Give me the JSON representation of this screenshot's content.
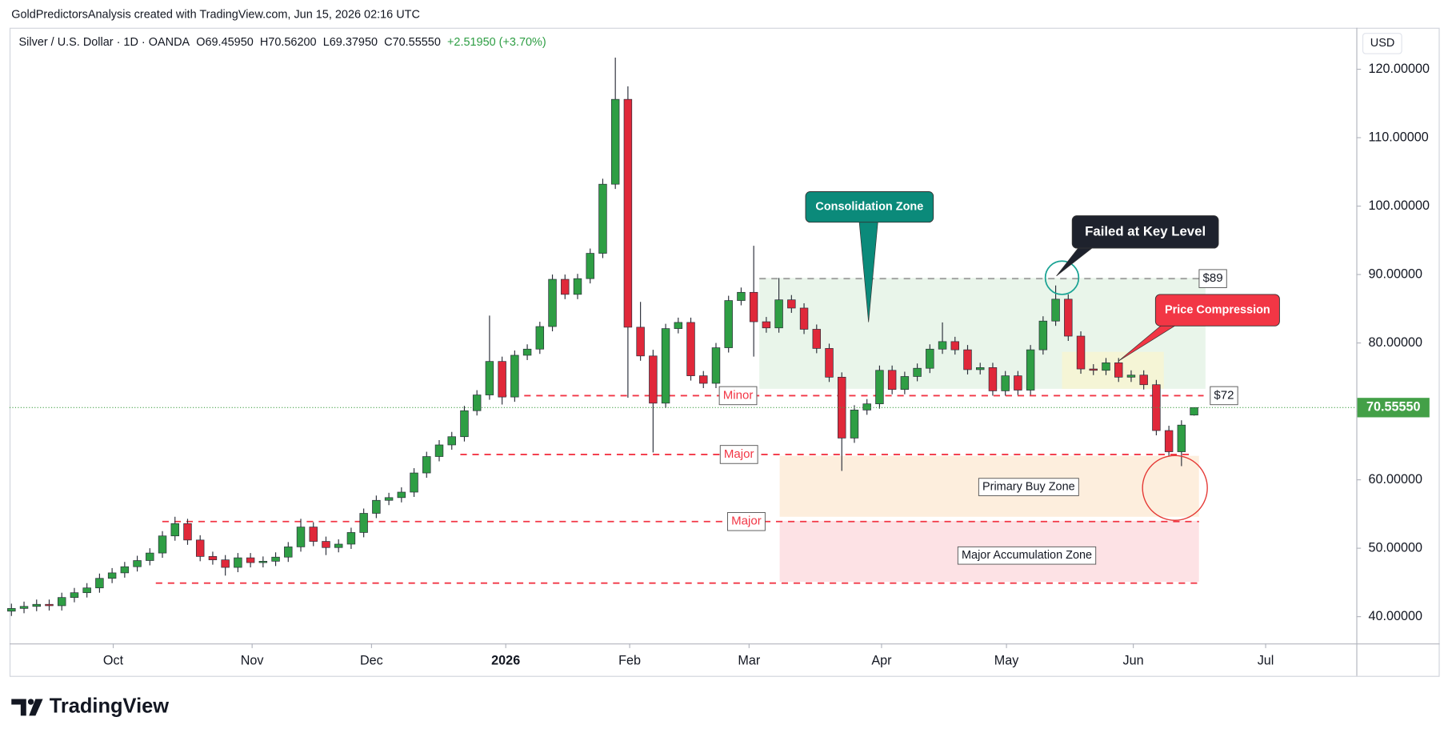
{
  "header": {
    "attribution": "GoldPredictorsAnalysis created with TradingView.com, Jun 15, 2026 02:16 UTC"
  },
  "chart_data": {
    "type": "candlestick",
    "title": "Silver / U.S. Dollar · 1D · OANDA",
    "legend_values": [
      "O69.45950",
      "H70.56200",
      "L69.37950",
      "C70.55550",
      "+2.51950 (+3.70%)"
    ],
    "currency": "USD",
    "up_color": "#2e9e44",
    "down_color": "#e0283a",
    "open": [
      40.8,
      41.2,
      41.5,
      41.8,
      41.6,
      42.8,
      43.5,
      44.2,
      45.6,
      46.4,
      47.3,
      48.2,
      49.3,
      51.8,
      53.6,
      51.2,
      48.8,
      48.3,
      47.2,
      48.6,
      47.9,
      48.1,
      48.7,
      50.2,
      53.1,
      51.0,
      50.1,
      50.6,
      52.3,
      55.1,
      57.0,
      57.4,
      58.2,
      61.0,
      63.4,
      65.1,
      66.3,
      70.1,
      72.4,
      77.3,
      72.1,
      78.2,
      79.1,
      82.4,
      89.3,
      87.1,
      89.4,
      93.1,
      103.2,
      115.6,
      82.3,
      78.1,
      71.2,
      82.1,
      83.0,
      75.2,
      74.1,
      79.3,
      86.2,
      87.4,
      83.1,
      82.2,
      86.3,
      85.1,
      82.0,
      79.2,
      75.0,
      66.1,
      70.2,
      71.1,
      76.0,
      73.2,
      75.1,
      76.3,
      79.1,
      80.2,
      79.0,
      76.1,
      76.4,
      73.0,
      75.2,
      73.1,
      79.0,
      83.2,
      86.4,
      81.0,
      76.2,
      76.0,
      77.1,
      75.0,
      75.3,
      73.9,
      67.2,
      64.1,
      69.4595
    ],
    "high": [
      41.9,
      42.2,
      42.5,
      42.5,
      43.5,
      44.2,
      44.9,
      46.3,
      47.1,
      48.0,
      48.9,
      50.0,
      52.5,
      54.6,
      54.3,
      51.9,
      49.5,
      49.0,
      49.3,
      49.3,
      48.8,
      49.4,
      50.9,
      54.3,
      53.8,
      51.7,
      51.3,
      53.0,
      55.8,
      57.7,
      58.1,
      58.9,
      61.7,
      64.1,
      65.8,
      67.0,
      70.8,
      73.1,
      84.0,
      78.0,
      78.9,
      79.8,
      83.1,
      90.0,
      90.0,
      90.1,
      93.8,
      104.0,
      121.7,
      117.5,
      86.0,
      79.0,
      82.8,
      83.7,
      83.7,
      75.9,
      80.0,
      86.9,
      88.1,
      94.2,
      83.8,
      89.5,
      87.0,
      85.8,
      82.7,
      79.9,
      75.7,
      70.9,
      71.8,
      76.7,
      76.7,
      75.8,
      77.0,
      79.8,
      83.0,
      80.9,
      79.7,
      77.1,
      77.1,
      75.9,
      75.9,
      79.7,
      83.9,
      88.4,
      87.1,
      81.7,
      76.9,
      77.8,
      77.8,
      76.0,
      76.0,
      74.6,
      67.9,
      68.7,
      70.562
    ],
    "low": [
      40.1,
      40.5,
      40.8,
      40.9,
      40.9,
      42.1,
      42.8,
      43.5,
      44.9,
      45.7,
      46.6,
      47.5,
      48.6,
      51.1,
      50.5,
      48.1,
      47.6,
      46.0,
      46.5,
      47.2,
      47.2,
      47.4,
      48.0,
      49.5,
      50.3,
      49.0,
      49.4,
      49.9,
      51.6,
      54.4,
      56.3,
      56.7,
      57.5,
      60.3,
      62.7,
      64.4,
      65.6,
      69.4,
      71.7,
      71.0,
      71.4,
      77.5,
      78.4,
      81.7,
      86.4,
      86.4,
      88.7,
      92.4,
      102.5,
      72.0,
      77.4,
      64.0,
      70.5,
      81.4,
      74.5,
      73.4,
      73.4,
      78.6,
      85.5,
      78.0,
      81.5,
      81.5,
      84.4,
      81.3,
      78.5,
      74.3,
      61.3,
      65.4,
      69.5,
      70.4,
      72.5,
      72.5,
      74.4,
      75.6,
      78.4,
      78.3,
      75.4,
      75.4,
      72.3,
      72.3,
      72.4,
      72.4,
      78.3,
      82.5,
      80.3,
      75.5,
      75.3,
      75.3,
      74.3,
      74.3,
      73.2,
      66.5,
      63.4,
      62.0,
      69.3795
    ],
    "close": [
      41.2,
      41.5,
      41.8,
      41.6,
      42.8,
      43.5,
      44.2,
      45.6,
      46.4,
      47.3,
      48.2,
      49.3,
      51.8,
      53.6,
      51.2,
      48.8,
      48.3,
      47.2,
      48.6,
      47.9,
      48.1,
      48.7,
      50.2,
      53.1,
      51.0,
      50.1,
      50.6,
      52.3,
      55.1,
      57.0,
      57.4,
      58.2,
      61.0,
      63.4,
      65.1,
      66.3,
      70.1,
      72.4,
      77.3,
      72.1,
      78.2,
      79.1,
      82.4,
      89.3,
      87.1,
      89.4,
      93.1,
      103.2,
      115.6,
      82.3,
      78.1,
      71.2,
      82.1,
      83.0,
      75.2,
      74.1,
      79.3,
      86.2,
      87.4,
      83.1,
      82.2,
      86.3,
      85.1,
      82.0,
      79.2,
      75.0,
      66.1,
      70.2,
      71.1,
      76.0,
      73.2,
      75.1,
      76.3,
      79.1,
      80.2,
      79.0,
      76.1,
      76.4,
      73.0,
      75.2,
      73.1,
      79.0,
      83.2,
      86.4,
      81.0,
      76.2,
      76.0,
      77.1,
      75.0,
      75.3,
      73.9,
      67.2,
      64.1,
      68.0,
      70.5555
    ],
    "xlim": [
      -0.15,
      106.9
    ],
    "xticks": [
      {
        "value": 8.09,
        "label": "Oct"
      },
      {
        "value": 19.13,
        "label": "Nov"
      },
      {
        "value": 28.62,
        "label": "Dec"
      },
      {
        "value": 39.29,
        "label": "2026",
        "bold": true
      },
      {
        "value": 49.14,
        "label": "Feb"
      },
      {
        "value": 58.63,
        "label": "Mar"
      },
      {
        "value": 69.16,
        "label": "Apr"
      },
      {
        "value": 79.09,
        "label": "May"
      },
      {
        "value": 89.17,
        "label": "Jun"
      },
      {
        "value": 99.69,
        "label": "Jul"
      }
    ],
    "ylim": [
      36.08,
      126.06
    ],
    "yticks": [
      {
        "value": 40,
        "label": "40.00000"
      },
      {
        "value": 50,
        "label": "50.00000"
      },
      {
        "value": 60,
        "label": "60.00000"
      },
      {
        "value": 70,
        "label": "70.00000"
      },
      {
        "value": 80,
        "label": "80.00000"
      },
      {
        "value": 90,
        "label": "90.00000"
      },
      {
        "value": 100,
        "label": "100.00000"
      },
      {
        "value": 110,
        "label": "110.00000"
      },
      {
        "value": 120,
        "label": "120.00000"
      }
    ],
    "grid": false,
    "last_price": 70.5555,
    "last_price_label": "70.55550",
    "last_price_color": "#43a047",
    "levels": [
      {
        "value": 89.4,
        "color": "#9e9e9e",
        "labels": [
          {
            "text": "$89",
            "color": "#131722"
          }
        ]
      },
      {
        "value": 72.3,
        "color": "#f23645",
        "labels": [
          {
            "text": "Minor",
            "color": "#f23645"
          },
          {
            "text": "$72",
            "color": "#131722"
          }
        ]
      },
      {
        "value": 63.7,
        "color": "#f23645",
        "labels": [
          {
            "text": "Major",
            "color": "#f23645"
          }
        ]
      },
      {
        "value": 53.9,
        "color": "#f23645",
        "labels": [
          {
            "text": "Major",
            "color": "#f23645"
          }
        ]
      },
      {
        "value": 44.9,
        "color": "#f23645",
        "labels": []
      }
    ],
    "zones": [
      {
        "ylim": [
          73.3,
          89.5
        ],
        "color": "#e9f5ea"
      },
      {
        "ylim": [
          54.6,
          63.5
        ],
        "color": "#fdeedd",
        "label": "Primary Buy Zone"
      },
      {
        "ylim": [
          45.1,
          54.0
        ],
        "color": "#fde2e5",
        "label": "Major Accumulation Zone"
      },
      {
        "ylim": [
          73.3,
          78.7
        ],
        "color": "#f5f5d6"
      }
    ],
    "callouts": [
      {
        "text": "Consolidation Zone",
        "color": "#0b8a7a"
      },
      {
        "text": "Failed at Key Level",
        "color": "#1e222d"
      },
      {
        "text": "Price Compression",
        "color": "#f23645"
      }
    ]
  },
  "footer": {
    "brand": "TradingView"
  }
}
